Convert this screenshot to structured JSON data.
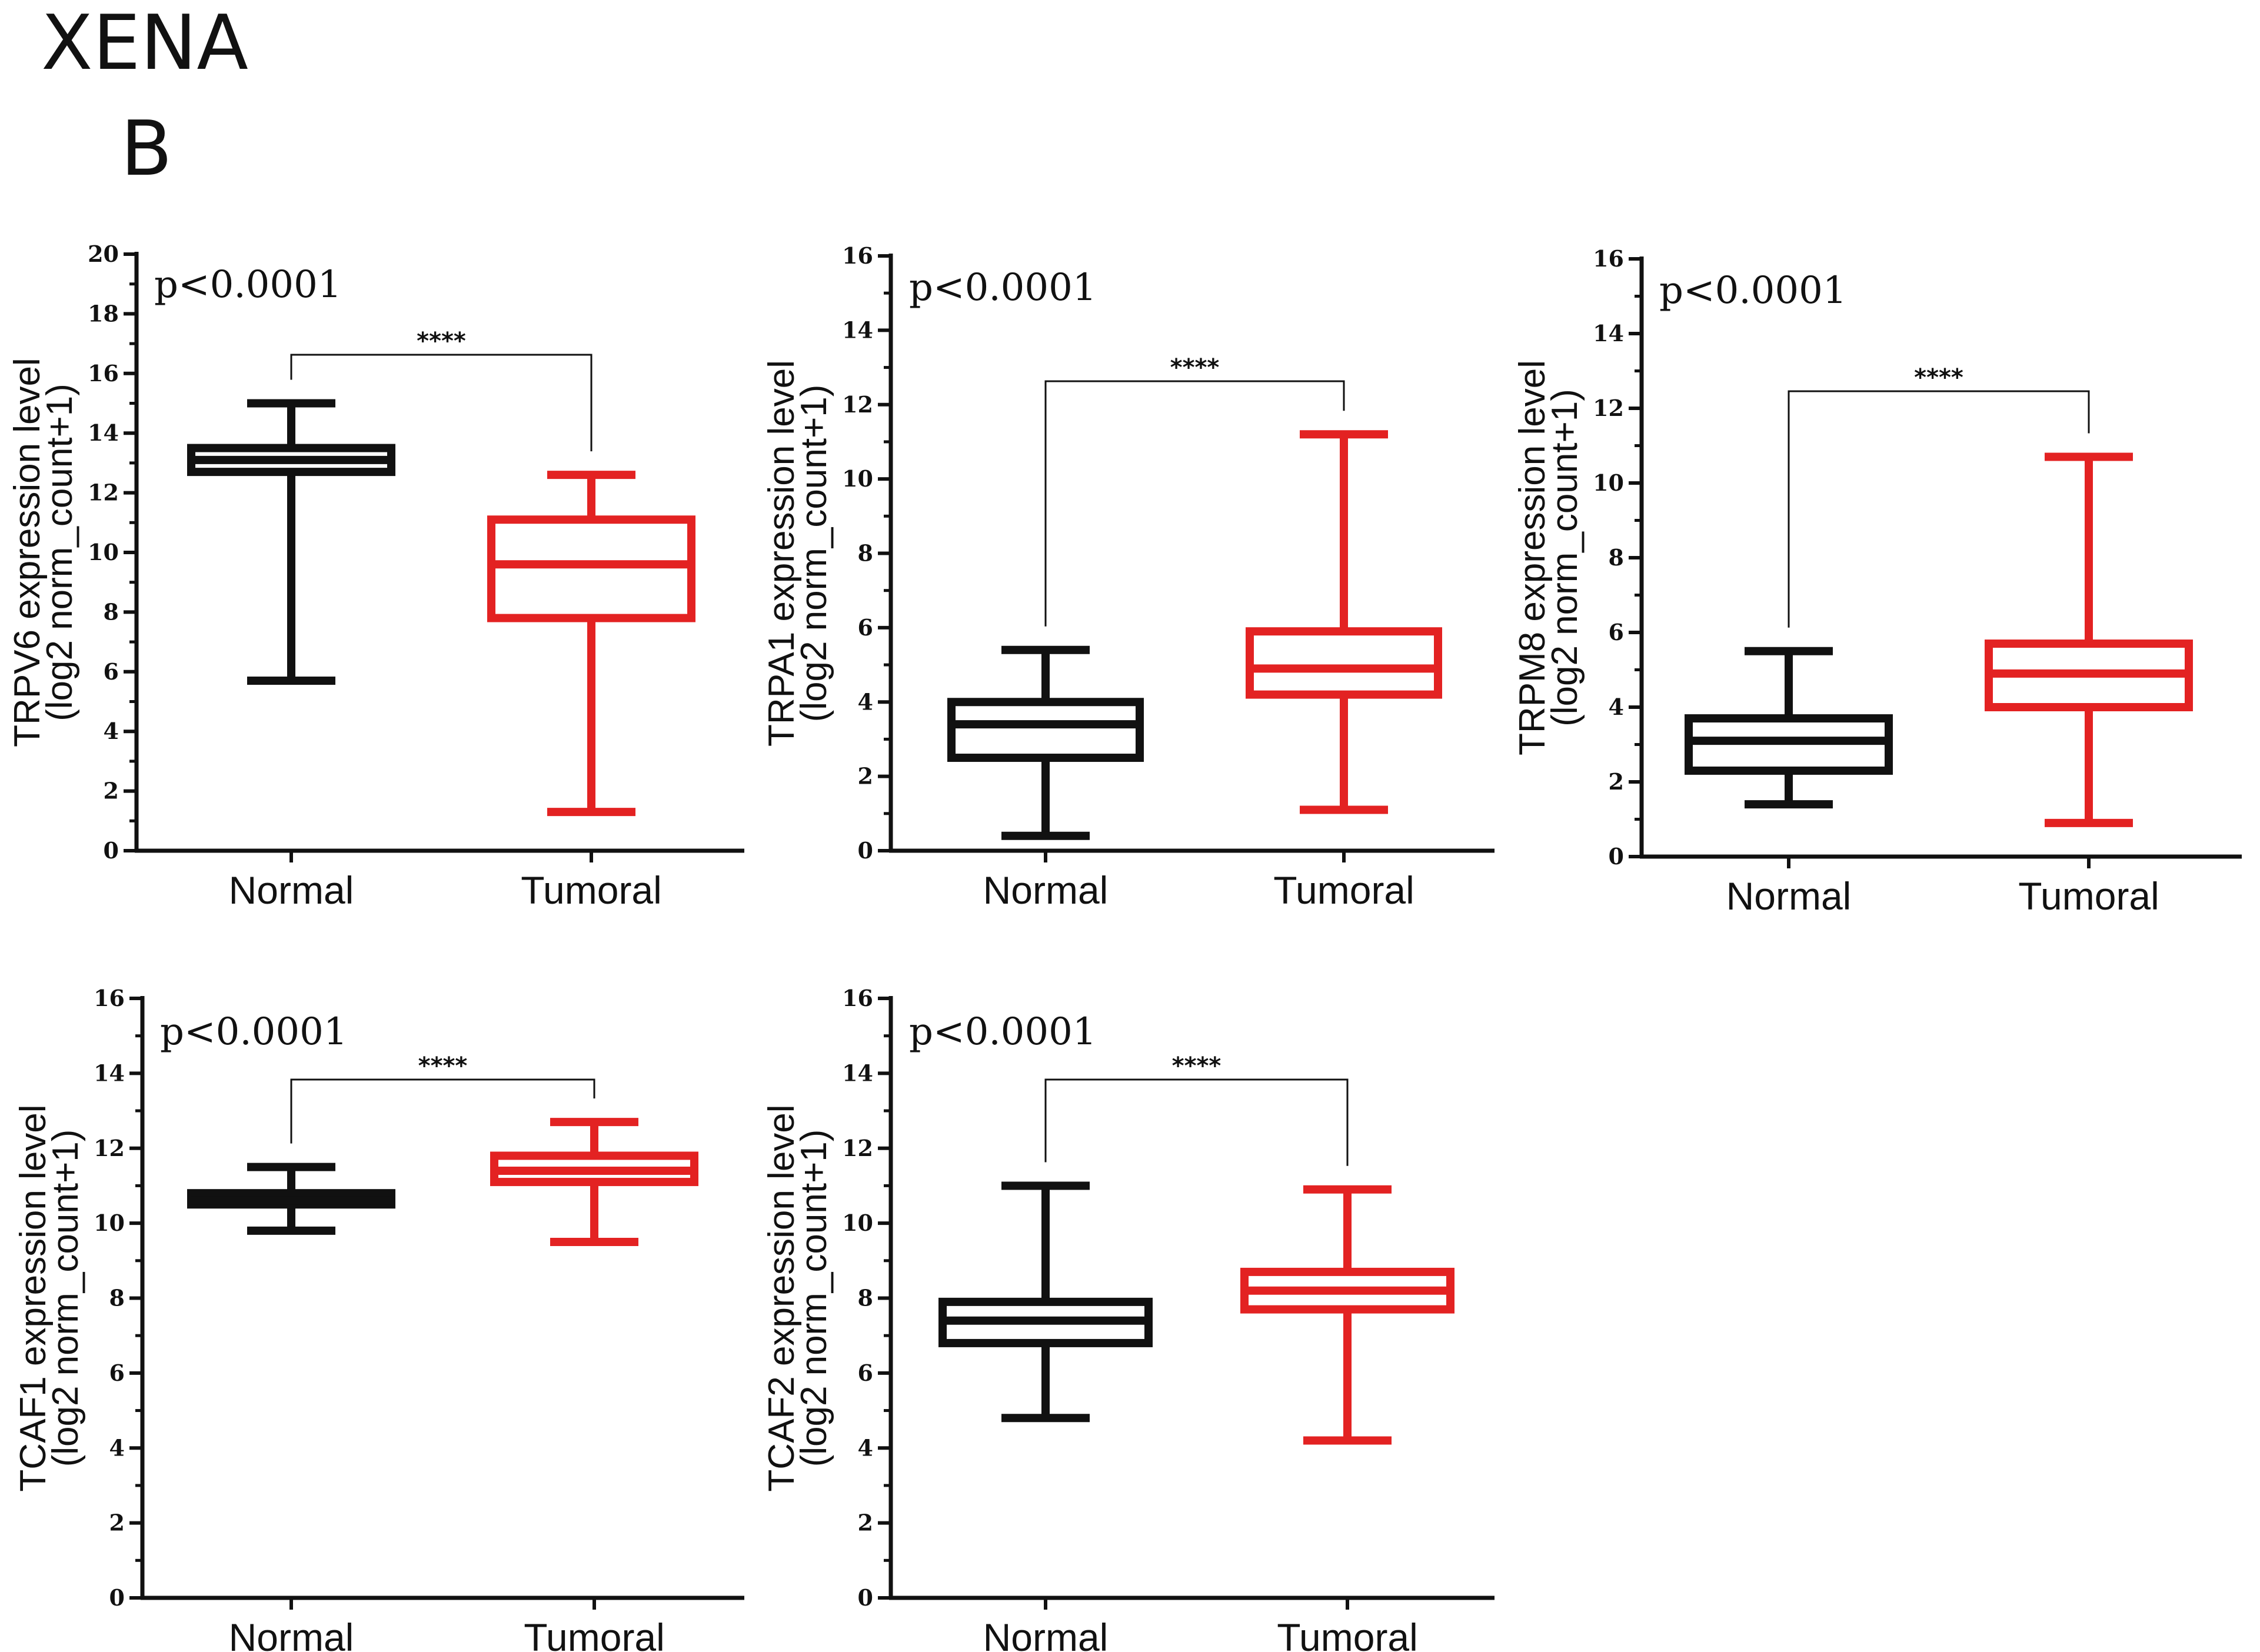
{
  "figure": {
    "title": "XENA",
    "panel_label": "B"
  },
  "chart_data": [
    {
      "type": "box",
      "gene": "TRPV6",
      "ylabel_line1": "TRPV6  expression level",
      "ylabel_line2": "(log2 norm_count+1)",
      "ylim": [
        0,
        20
      ],
      "yticks": [
        0,
        2,
        4,
        6,
        8,
        10,
        12,
        14,
        16,
        18,
        20
      ],
      "pvalue": "p<0.0001",
      "significance": "****",
      "categories": [
        "Normal",
        "Tumoral"
      ],
      "colors": [
        "#111111",
        "#e32222"
      ],
      "boxes": [
        {
          "name": "Normal",
          "min": 5.7,
          "q1": 12.7,
          "median": 13.1,
          "q3": 13.5,
          "max": 15.0
        },
        {
          "name": "Tumoral",
          "min": 1.3,
          "q1": 7.8,
          "median": 9.6,
          "q3": 11.1,
          "max": 12.6
        }
      ]
    },
    {
      "type": "box",
      "gene": "TRPA1",
      "ylabel_line1": "TRPA1 expression level",
      "ylabel_line2": "(log2 norm_count+1)",
      "ylim": [
        0,
        16
      ],
      "yticks": [
        0,
        2,
        4,
        6,
        8,
        10,
        12,
        14,
        16
      ],
      "pvalue": "p<0.0001",
      "significance": "****",
      "categories": [
        "Normal",
        "Tumoral"
      ],
      "colors": [
        "#111111",
        "#e32222"
      ],
      "boxes": [
        {
          "name": "Normal",
          "min": 0.4,
          "q1": 2.5,
          "median": 3.4,
          "q3": 4.0,
          "max": 5.4
        },
        {
          "name": "Tumoral",
          "min": 1.1,
          "q1": 4.2,
          "median": 4.9,
          "q3": 5.9,
          "max": 11.2
        }
      ]
    },
    {
      "type": "box",
      "gene": "TRPM8",
      "ylabel_line1": "TRPM8 expression level",
      "ylabel_line2": "(log2 norm_count+1)",
      "ylim": [
        0,
        16
      ],
      "yticks": [
        0,
        2,
        4,
        6,
        8,
        10,
        12,
        14,
        16
      ],
      "pvalue": "p<0.0001",
      "significance": "****",
      "categories": [
        "Normal",
        "Tumoral"
      ],
      "colors": [
        "#111111",
        "#e32222"
      ],
      "boxes": [
        {
          "name": "Normal",
          "min": 1.4,
          "q1": 2.3,
          "median": 3.1,
          "q3": 3.7,
          "max": 5.5
        },
        {
          "name": "Tumoral",
          "min": 0.9,
          "q1": 4.0,
          "median": 4.9,
          "q3": 5.7,
          "max": 10.7
        }
      ]
    },
    {
      "type": "box",
      "gene": "TCAF1",
      "ylabel_line1": "TCAF1 expression level",
      "ylabel_line2": "(log2 norm_count+1)",
      "ylim": [
        0,
        16
      ],
      "yticks": [
        0,
        2,
        4,
        6,
        8,
        10,
        12,
        14,
        16
      ],
      "pvalue": "p<0.0001",
      "significance": "****",
      "categories": [
        "Normal",
        "Tumoral"
      ],
      "colors": [
        "#111111",
        "#e32222"
      ],
      "boxes": [
        {
          "name": "Normal",
          "min": 9.8,
          "q1": 10.5,
          "median": 10.6,
          "q3": 10.8,
          "max": 11.5
        },
        {
          "name": "Tumoral",
          "min": 9.5,
          "q1": 11.1,
          "median": 11.4,
          "q3": 11.8,
          "max": 12.7
        }
      ]
    },
    {
      "type": "box",
      "gene": "TCAF2",
      "ylabel_line1": "TCAF2 expression level",
      "ylabel_line2": "(log2 norm_count+1)",
      "ylim": [
        0,
        16
      ],
      "yticks": [
        0,
        2,
        4,
        6,
        8,
        10,
        12,
        14,
        16
      ],
      "pvalue": "p<0.0001",
      "significance": "****",
      "categories": [
        "Normal",
        "Tumoral"
      ],
      "colors": [
        "#111111",
        "#e32222"
      ],
      "boxes": [
        {
          "name": "Normal",
          "min": 4.8,
          "q1": 6.8,
          "median": 7.4,
          "q3": 7.9,
          "max": 11.0
        },
        {
          "name": "Tumoral",
          "min": 4.2,
          "q1": 7.7,
          "median": 8.2,
          "q3": 8.7,
          "max": 10.9
        }
      ]
    }
  ]
}
